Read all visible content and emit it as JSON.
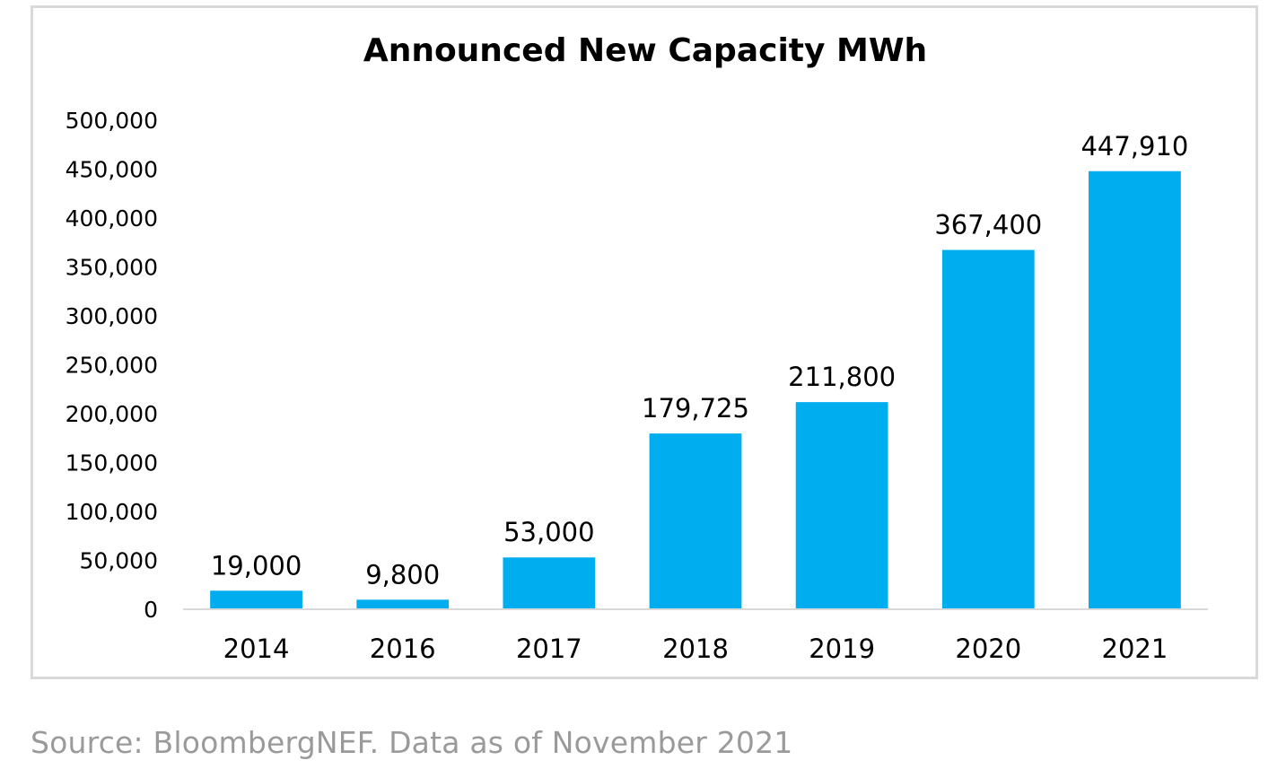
{
  "chart_data": {
    "type": "bar",
    "title": "Announced New Capacity MWh",
    "xlabel": "",
    "ylabel": "",
    "categories": [
      "2014",
      "2016",
      "2017",
      "2018",
      "2019",
      "2020",
      "2021"
    ],
    "values": [
      19000,
      9800,
      53000,
      179725,
      211800,
      367400,
      447910
    ],
    "data_labels": [
      "19,000",
      "9,800",
      "53,000",
      "179,725",
      "211,800",
      "367,400",
      "447,910"
    ],
    "ylim": [
      0,
      500000
    ],
    "yticks": [
      0,
      50000,
      100000,
      150000,
      200000,
      250000,
      300000,
      350000,
      400000,
      450000,
      500000
    ],
    "ytick_labels": [
      "0",
      "50,000",
      "100,000",
      "150,000",
      "200,000",
      "250,000",
      "300,000",
      "350,000",
      "400,000",
      "450,000",
      "500,000"
    ],
    "grid": false,
    "legend": "none",
    "bar_color": "#00ADEF",
    "axis_color": "#d9d9d9",
    "text_color": "#000000"
  },
  "source_note": "Source: BloombergNEF. Data as of November 2021"
}
